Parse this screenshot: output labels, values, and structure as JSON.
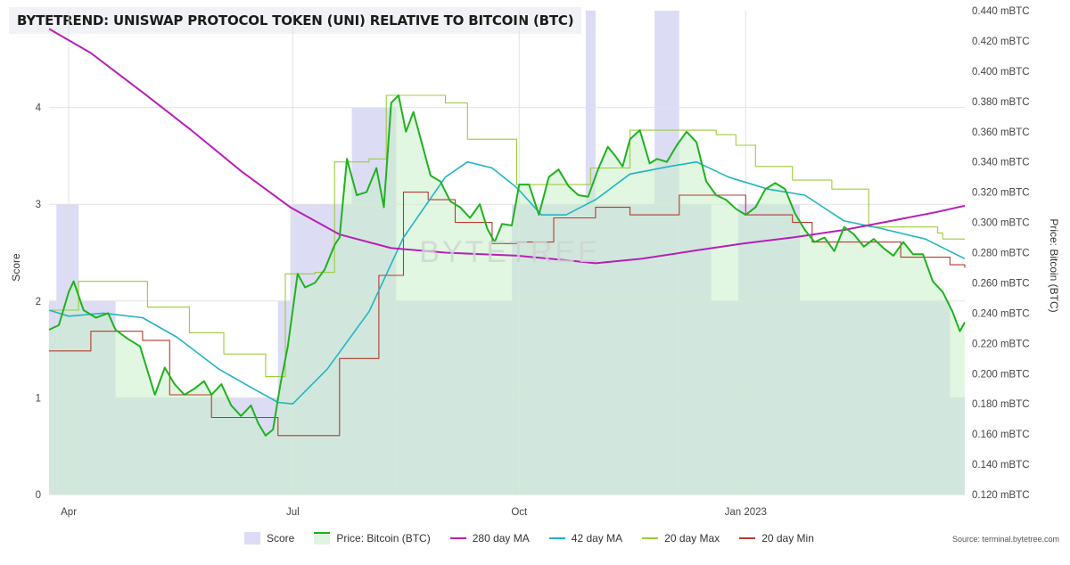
{
  "title": "BYTETREND: UNISWAP PROTOCOL TOKEN (UNI) RELATIVE TO BITCOIN (BTC)",
  "watermark": "BYTETREE",
  "source": "Source: terminal.bytetree.com",
  "legend": [
    {
      "key": "score",
      "label": "Score",
      "color": "#dcdcf5",
      "type": "box"
    },
    {
      "key": "price",
      "label": "Price: Bitcoin (BTC)",
      "color": "#1fb21f",
      "type": "area"
    },
    {
      "key": "ma280",
      "label": "280 day MA",
      "color": "#b71fb7",
      "type": "line"
    },
    {
      "key": "ma42",
      "label": "42 day MA",
      "color": "#21b5c3",
      "type": "line"
    },
    {
      "key": "max20",
      "label": "20 day Max",
      "color": "#9ccc3a",
      "type": "line"
    },
    {
      "key": "min20",
      "label": "20 day Min",
      "color": "#b53a2e",
      "type": "line"
    }
  ],
  "chart_data": {
    "type": "line",
    "title": "BYTETREND: UNISWAP PROTOCOL TOKEN (UNI) RELATIVE TO BITCOIN (BTC)",
    "x_ticks": [
      "Apr",
      "Jul",
      "Oct",
      "Jan 2023"
    ],
    "x_range": [
      "2022-03-24",
      "2023-03-31"
    ],
    "y_left": {
      "label": "Score",
      "range": [
        0,
        5
      ],
      "ticks": [
        "0",
        "1",
        "2",
        "3",
        "4"
      ]
    },
    "y_right": {
      "label": "Price: Bitcoin (BTC)",
      "range": [
        0.12,
        0.44
      ],
      "ticks": [
        "0.120 mBTC",
        "0.140 mBTC",
        "0.160 mBTC",
        "0.180 mBTC",
        "0.200 mBTC",
        "0.220 mBTC",
        "0.240 mBTC",
        "0.260 mBTC",
        "0.280 mBTC",
        "0.300 mBTC",
        "0.320 mBTC",
        "0.340 mBTC",
        "0.360 mBTC",
        "0.380 mBTC",
        "0.400 mBTC",
        "0.420 mBTC",
        "0.440 mBTC"
      ]
    },
    "grid": true,
    "legend_position": "bottom",
    "score_segments": [
      {
        "start": "2022-03-24",
        "end": "2022-03-27",
        "value": 2
      },
      {
        "start": "2022-03-27",
        "end": "2022-04-05",
        "value": 3
      },
      {
        "start": "2022-04-05",
        "end": "2022-04-20",
        "value": 2
      },
      {
        "start": "2022-04-20",
        "end": "2022-06-25",
        "value": 1
      },
      {
        "start": "2022-06-25",
        "end": "2022-06-30",
        "value": 2
      },
      {
        "start": "2022-06-30",
        "end": "2022-07-25",
        "value": 3
      },
      {
        "start": "2022-07-25",
        "end": "2022-08-12",
        "value": 4
      },
      {
        "start": "2022-08-12",
        "end": "2022-09-28",
        "value": 2
      },
      {
        "start": "2022-09-28",
        "end": "2022-10-28",
        "value": 3
      },
      {
        "start": "2022-10-28",
        "end": "2022-11-01",
        "value": 5
      },
      {
        "start": "2022-11-01",
        "end": "2022-11-25",
        "value": 3
      },
      {
        "start": "2022-11-25",
        "end": "2022-12-05",
        "value": 5
      },
      {
        "start": "2022-12-05",
        "end": "2022-12-18",
        "value": 3
      },
      {
        "start": "2022-12-18",
        "end": "2022-12-29",
        "value": 2
      },
      {
        "start": "2022-12-29",
        "end": "2023-01-23",
        "value": 3
      },
      {
        "start": "2023-01-23",
        "end": "2023-02-15",
        "value": 2
      },
      {
        "start": "2023-02-15",
        "end": "2023-03-25",
        "value": 2
      },
      {
        "start": "2023-03-25",
        "end": "2023-03-31",
        "value": 1
      }
    ],
    "series": [
      {
        "name": "Price: Bitcoin (BTC)",
        "points": [
          [
            "2022-03-24",
            0.229
          ],
          [
            "2022-03-28",
            0.232
          ],
          [
            "2022-04-01",
            0.254
          ],
          [
            "2022-04-03",
            0.261
          ],
          [
            "2022-04-07",
            0.242
          ],
          [
            "2022-04-12",
            0.237
          ],
          [
            "2022-04-17",
            0.24
          ],
          [
            "2022-04-20",
            0.229
          ],
          [
            "2022-04-25",
            0.223
          ],
          [
            "2022-04-30",
            0.218
          ],
          [
            "2022-05-03",
            0.202
          ],
          [
            "2022-05-06",
            0.186
          ],
          [
            "2022-05-10",
            0.204
          ],
          [
            "2022-05-14",
            0.193
          ],
          [
            "2022-05-18",
            0.186
          ],
          [
            "2022-05-22",
            0.19
          ],
          [
            "2022-05-26",
            0.195
          ],
          [
            "2022-05-29",
            0.186
          ],
          [
            "2022-06-02",
            0.193
          ],
          [
            "2022-06-06",
            0.179
          ],
          [
            "2022-06-10",
            0.172
          ],
          [
            "2022-06-14",
            0.179
          ],
          [
            "2022-06-17",
            0.167
          ],
          [
            "2022-06-20",
            0.159
          ],
          [
            "2022-06-23",
            0.163
          ],
          [
            "2022-06-26",
            0.193
          ],
          [
            "2022-06-29",
            0.218
          ],
          [
            "2022-07-03",
            0.266
          ],
          [
            "2022-07-06",
            0.257
          ],
          [
            "2022-07-10",
            0.26
          ],
          [
            "2022-07-14",
            0.269
          ],
          [
            "2022-07-18",
            0.285
          ],
          [
            "2022-07-20",
            0.29
          ],
          [
            "2022-07-23",
            0.342
          ],
          [
            "2022-07-27",
            0.318
          ],
          [
            "2022-07-31",
            0.32
          ],
          [
            "2022-08-04",
            0.336
          ],
          [
            "2022-08-07",
            0.31
          ],
          [
            "2022-08-10",
            0.379
          ],
          [
            "2022-08-13",
            0.384
          ],
          [
            "2022-08-16",
            0.36
          ],
          [
            "2022-08-19",
            0.373
          ],
          [
            "2022-08-22",
            0.355
          ],
          [
            "2022-08-26",
            0.331
          ],
          [
            "2022-08-30",
            0.327
          ],
          [
            "2022-09-03",
            0.314
          ],
          [
            "2022-09-07",
            0.31
          ],
          [
            "2022-09-11",
            0.303
          ],
          [
            "2022-09-15",
            0.312
          ],
          [
            "2022-09-18",
            0.296
          ],
          [
            "2022-09-21",
            0.287
          ],
          [
            "2022-09-24",
            0.299
          ],
          [
            "2022-09-28",
            0.298
          ],
          [
            "2022-10-01",
            0.325
          ],
          [
            "2022-10-05",
            0.325
          ],
          [
            "2022-10-09",
            0.305
          ],
          [
            "2022-10-13",
            0.33
          ],
          [
            "2022-10-17",
            0.335
          ],
          [
            "2022-10-21",
            0.324
          ],
          [
            "2022-10-25",
            0.318
          ],
          [
            "2022-10-29",
            0.317
          ],
          [
            "2022-11-02",
            0.335
          ],
          [
            "2022-11-06",
            0.35
          ],
          [
            "2022-11-09",
            0.344
          ],
          [
            "2022-11-12",
            0.337
          ],
          [
            "2022-11-15",
            0.355
          ],
          [
            "2022-11-19",
            0.361
          ],
          [
            "2022-11-23",
            0.339
          ],
          [
            "2022-11-26",
            0.342
          ],
          [
            "2022-11-30",
            0.34
          ],
          [
            "2022-12-04",
            0.351
          ],
          [
            "2022-12-08",
            0.36
          ],
          [
            "2022-12-12",
            0.353
          ],
          [
            "2022-12-16",
            0.327
          ],
          [
            "2022-12-20",
            0.318
          ],
          [
            "2022-12-24",
            0.315
          ],
          [
            "2022-12-28",
            0.309
          ],
          [
            "2023-01-01",
            0.305
          ],
          [
            "2023-01-05",
            0.31
          ],
          [
            "2023-01-09",
            0.322
          ],
          [
            "2023-01-13",
            0.326
          ],
          [
            "2023-01-17",
            0.322
          ],
          [
            "2023-01-21",
            0.306
          ],
          [
            "2023-01-25",
            0.295
          ],
          [
            "2023-01-29",
            0.287
          ],
          [
            "2023-02-02",
            0.29
          ],
          [
            "2023-02-06",
            0.281
          ],
          [
            "2023-02-10",
            0.297
          ],
          [
            "2023-02-14",
            0.292
          ],
          [
            "2023-02-18",
            0.284
          ],
          [
            "2023-02-22",
            0.289
          ],
          [
            "2023-02-26",
            0.283
          ],
          [
            "2023-03-02",
            0.278
          ],
          [
            "2023-03-06",
            0.287
          ],
          [
            "2023-03-10",
            0.279
          ],
          [
            "2023-03-14",
            0.279
          ],
          [
            "2023-03-18",
            0.261
          ],
          [
            "2023-03-22",
            0.254
          ],
          [
            "2023-03-26",
            0.241
          ],
          [
            "2023-03-29",
            0.228
          ],
          [
            "2023-03-31",
            0.234
          ]
        ]
      },
      {
        "name": "280 day MA",
        "points": [
          [
            "2022-03-24",
            0.428
          ],
          [
            "2022-04-10",
            0.412
          ],
          [
            "2022-05-01",
            0.386
          ],
          [
            "2022-05-20",
            0.362
          ],
          [
            "2022-06-10",
            0.334
          ],
          [
            "2022-06-30",
            0.31
          ],
          [
            "2022-07-20",
            0.292
          ],
          [
            "2022-08-10",
            0.283
          ],
          [
            "2022-09-01",
            0.28
          ],
          [
            "2022-09-30",
            0.278
          ],
          [
            "2022-10-20",
            0.275
          ],
          [
            "2022-11-01",
            0.273
          ],
          [
            "2022-11-20",
            0.276
          ],
          [
            "2022-12-10",
            0.281
          ],
          [
            "2022-12-31",
            0.286
          ],
          [
            "2023-01-20",
            0.29
          ],
          [
            "2023-02-10",
            0.295
          ],
          [
            "2023-03-01",
            0.301
          ],
          [
            "2023-03-20",
            0.307
          ],
          [
            "2023-03-31",
            0.311
          ]
        ]
      },
      {
        "name": "42 day MA",
        "points": [
          [
            "2022-03-24",
            0.242
          ],
          [
            "2022-04-01",
            0.238
          ],
          [
            "2022-04-15",
            0.24
          ],
          [
            "2022-05-01",
            0.237
          ],
          [
            "2022-05-15",
            0.224
          ],
          [
            "2022-06-01",
            0.203
          ],
          [
            "2022-06-15",
            0.19
          ],
          [
            "2022-06-25",
            0.181
          ],
          [
            "2022-07-01",
            0.18
          ],
          [
            "2022-07-15",
            0.203
          ],
          [
            "2022-08-01",
            0.241
          ],
          [
            "2022-08-15",
            0.29
          ],
          [
            "2022-09-01",
            0.33
          ],
          [
            "2022-09-10",
            0.34
          ],
          [
            "2022-09-20",
            0.336
          ],
          [
            "2022-09-30",
            0.323
          ],
          [
            "2022-10-10",
            0.305
          ],
          [
            "2022-10-20",
            0.305
          ],
          [
            "2022-11-01",
            0.315
          ],
          [
            "2022-11-15",
            0.332
          ],
          [
            "2022-12-01",
            0.337
          ],
          [
            "2022-12-12",
            0.34
          ],
          [
            "2022-12-25",
            0.33
          ],
          [
            "2023-01-10",
            0.322
          ],
          [
            "2023-01-25",
            0.318
          ],
          [
            "2023-02-10",
            0.301
          ],
          [
            "2023-02-25",
            0.296
          ],
          [
            "2023-03-15",
            0.289
          ],
          [
            "2023-03-31",
            0.276
          ]
        ]
      },
      {
        "name": "20 day Max",
        "points": [
          [
            "2022-03-24",
            0.242
          ],
          [
            "2022-04-05",
            0.261
          ],
          [
            "2022-05-01",
            0.261
          ],
          [
            "2022-05-03",
            0.244
          ],
          [
            "2022-05-20",
            0.227
          ],
          [
            "2022-06-03",
            0.213
          ],
          [
            "2022-06-20",
            0.198
          ],
          [
            "2022-06-28",
            0.266
          ],
          [
            "2022-07-10",
            0.267
          ],
          [
            "2022-07-18",
            0.34
          ],
          [
            "2022-08-01",
            0.342
          ],
          [
            "2022-08-08",
            0.384
          ],
          [
            "2022-09-01",
            0.379
          ],
          [
            "2022-09-10",
            0.355
          ],
          [
            "2022-09-30",
            0.325
          ],
          [
            "2022-10-30",
            0.336
          ],
          [
            "2022-11-15",
            0.361
          ],
          [
            "2022-12-20",
            0.358
          ],
          [
            "2022-12-28",
            0.351
          ],
          [
            "2023-01-05",
            0.337
          ],
          [
            "2023-01-20",
            0.328
          ],
          [
            "2023-02-05",
            0.322
          ],
          [
            "2023-02-20",
            0.297
          ],
          [
            "2023-03-20",
            0.293
          ],
          [
            "2023-03-22",
            0.289
          ],
          [
            "2023-03-31",
            0.289
          ]
        ]
      },
      {
        "name": "20 day Min",
        "points": [
          [
            "2022-03-24",
            0.215
          ],
          [
            "2022-04-10",
            0.228
          ],
          [
            "2022-05-01",
            0.222
          ],
          [
            "2022-05-12",
            0.186
          ],
          [
            "2022-05-29",
            0.171
          ],
          [
            "2022-06-15",
            0.171
          ],
          [
            "2022-06-25",
            0.159
          ],
          [
            "2022-07-12",
            0.159
          ],
          [
            "2022-07-20",
            0.21
          ],
          [
            "2022-08-05",
            0.265
          ],
          [
            "2022-08-15",
            0.32
          ],
          [
            "2022-08-25",
            0.315
          ],
          [
            "2022-09-05",
            0.3
          ],
          [
            "2022-09-20",
            0.286
          ],
          [
            "2022-09-30",
            0.287
          ],
          [
            "2022-10-15",
            0.303
          ],
          [
            "2022-11-01",
            0.31
          ],
          [
            "2022-11-15",
            0.305
          ],
          [
            "2022-12-05",
            0.318
          ],
          [
            "2022-12-20",
            0.318
          ],
          [
            "2023-01-01",
            0.305
          ],
          [
            "2023-01-20",
            0.3
          ],
          [
            "2023-01-28",
            0.287
          ],
          [
            "2023-02-20",
            0.287
          ],
          [
            "2023-03-05",
            0.277
          ],
          [
            "2023-03-25",
            0.272
          ],
          [
            "2023-03-31",
            0.27
          ]
        ]
      }
    ]
  }
}
